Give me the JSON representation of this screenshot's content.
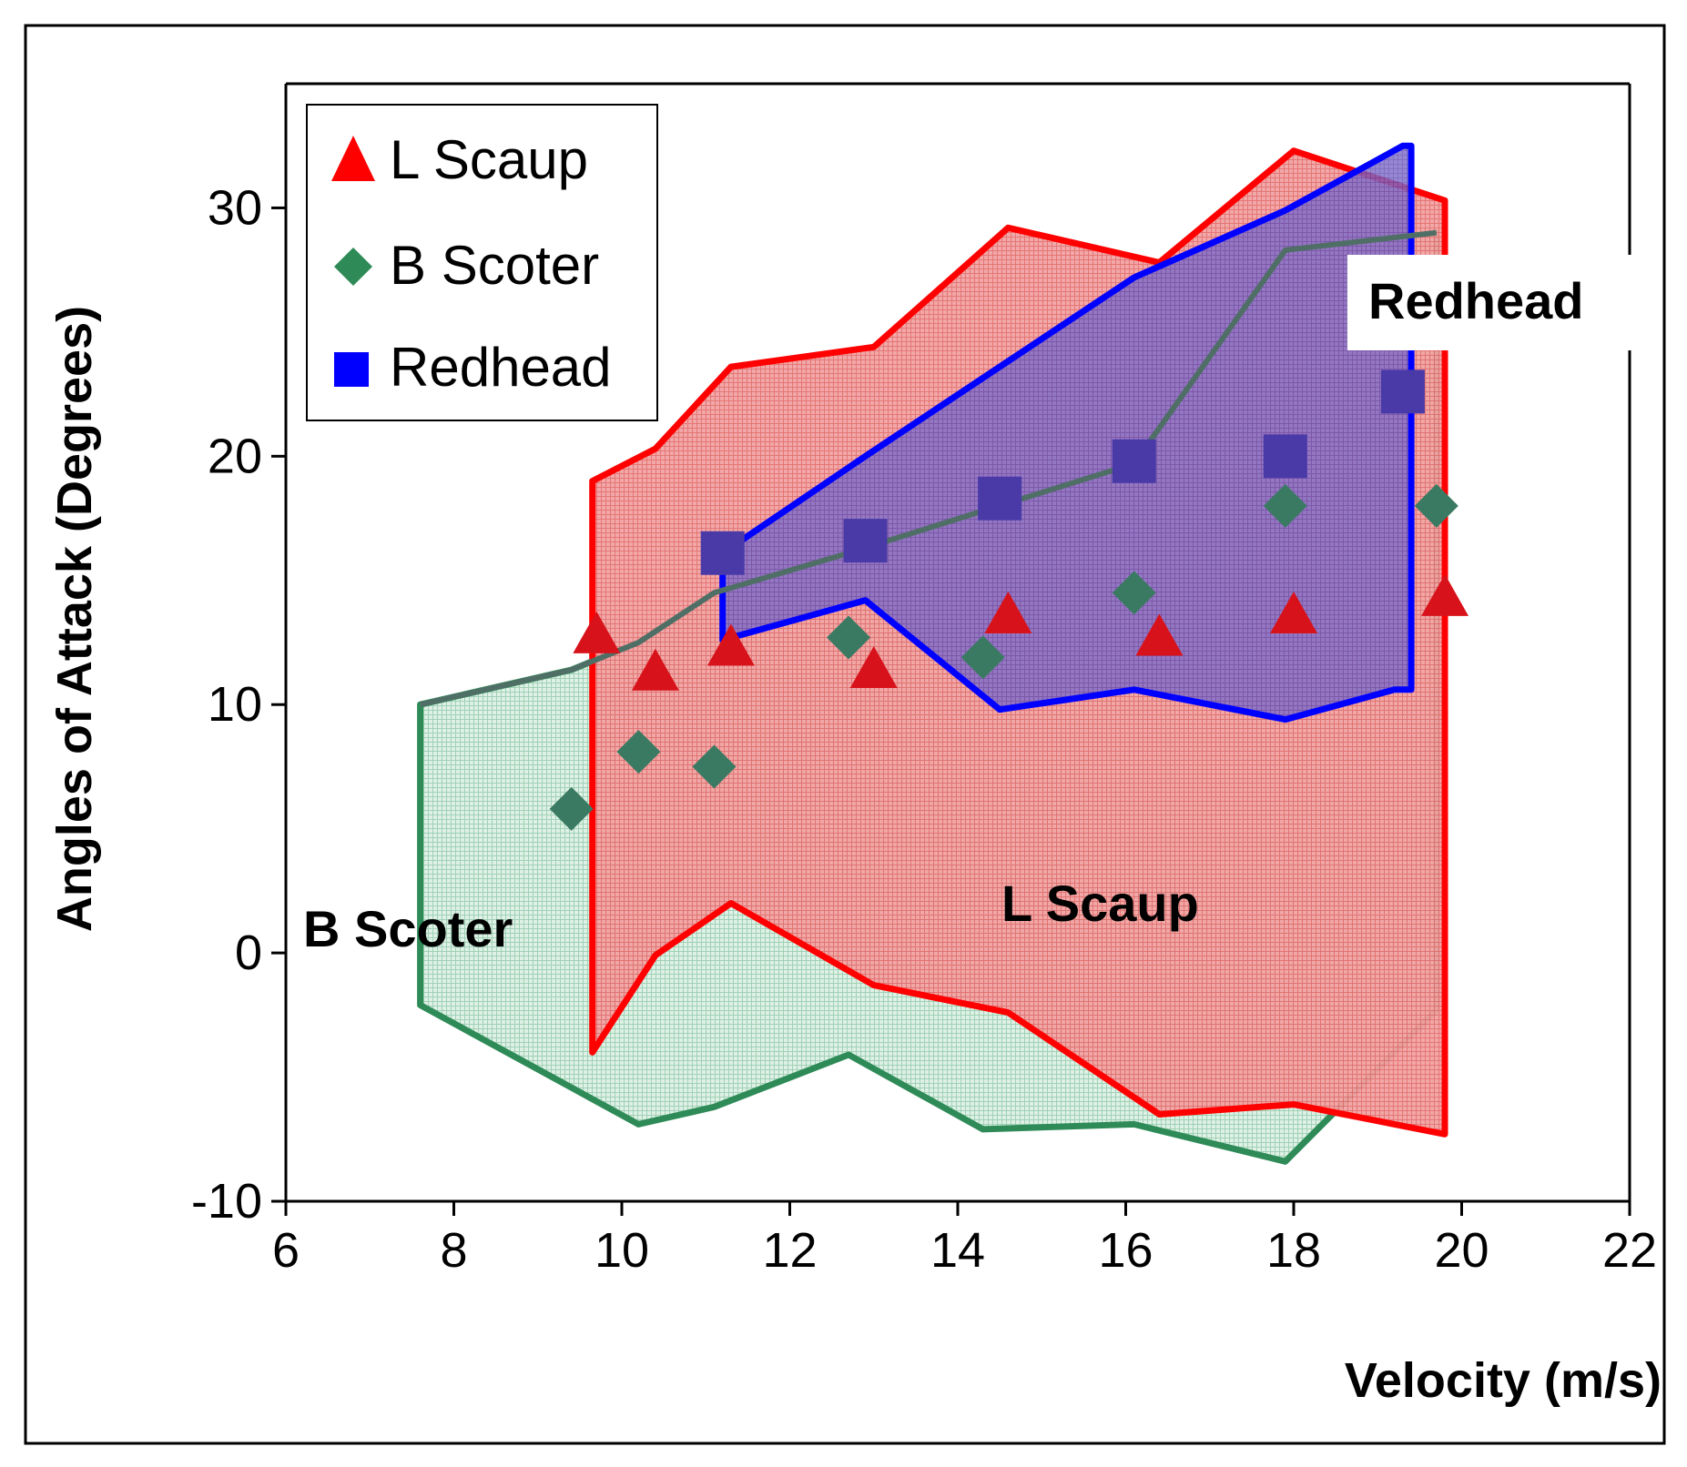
{
  "chart_data": {
    "type": "scatter",
    "xlabel": "Velocity (m/s)",
    "ylabel": "Angles of Attack (Degrees)",
    "xlim": [
      6,
      22
    ],
    "ylim": [
      -10,
      35
    ],
    "xticks": [
      6,
      8,
      10,
      12,
      14,
      16,
      18,
      20,
      22
    ],
    "yticks": [
      -10,
      0,
      10,
      20,
      30
    ],
    "legend_position": "top-left",
    "series": [
      {
        "name": "L Scaup",
        "marker": "triangle",
        "color": "#ff0000",
        "points": [
          [
            9.7,
            12.8
          ],
          [
            10.4,
            11.3
          ],
          [
            11.3,
            12.3
          ],
          [
            13.0,
            11.4
          ],
          [
            14.6,
            13.6
          ],
          [
            16.4,
            12.7
          ],
          [
            18.0,
            13.6
          ],
          [
            19.8,
            14.3
          ]
        ],
        "region": [
          [
            9.65,
            -4
          ],
          [
            9.65,
            19
          ],
          [
            10.4,
            20.3
          ],
          [
            11.3,
            23.6
          ],
          [
            13.0,
            24.4
          ],
          [
            14.6,
            29.2
          ],
          [
            16.4,
            27.8
          ],
          [
            18.0,
            32.3
          ],
          [
            19.8,
            30.3
          ],
          [
            19.8,
            -7.3
          ],
          [
            18.0,
            -6.1
          ],
          [
            16.4,
            -6.5
          ],
          [
            14.6,
            -2.4
          ],
          [
            13.0,
            -1.3
          ],
          [
            11.3,
            2.0
          ],
          [
            10.4,
            -0.1
          ],
          [
            9.65,
            -4
          ]
        ],
        "region_label": "L Scaup"
      },
      {
        "name": "B Scoter",
        "marker": "diamond",
        "color": "#2e8b57",
        "points": [
          [
            9.4,
            5.8
          ],
          [
            10.2,
            8.1
          ],
          [
            11.1,
            7.5
          ],
          [
            12.7,
            12.7
          ],
          [
            14.3,
            11.9
          ],
          [
            16.1,
            14.5
          ],
          [
            17.9,
            18.0
          ],
          [
            19.7,
            18.0
          ]
        ],
        "region": [
          [
            7.6,
            10.0
          ],
          [
            9.4,
            11.4
          ],
          [
            10.2,
            12.5
          ],
          [
            11.1,
            14.5
          ],
          [
            12.7,
            16.1
          ],
          [
            14.3,
            17.8
          ],
          [
            16.1,
            19.7
          ],
          [
            17.9,
            28.3
          ],
          [
            19.7,
            29.0
          ],
          [
            19.7,
            -2.3
          ],
          [
            17.9,
            -8.4
          ],
          [
            16.1,
            -6.9
          ],
          [
            14.3,
            -7.1
          ],
          [
            12.7,
            -4.1
          ],
          [
            11.1,
            -6.2
          ],
          [
            10.2,
            -6.9
          ],
          [
            7.6,
            -2.1
          ],
          [
            7.6,
            10.0
          ]
        ],
        "region_label": "B Scoter"
      },
      {
        "name": "Redhead",
        "marker": "square",
        "color": "#0000ff",
        "points": [
          [
            11.2,
            16.1
          ],
          [
            12.9,
            16.6
          ],
          [
            14.5,
            18.3
          ],
          [
            16.1,
            19.8
          ],
          [
            17.9,
            20.0
          ],
          [
            19.3,
            22.6
          ]
        ],
        "region": [
          [
            11.2,
            16.1
          ],
          [
            12.9,
            20.0
          ],
          [
            14.5,
            23.6
          ],
          [
            16.1,
            27.2
          ],
          [
            17.9,
            29.9
          ],
          [
            19.3,
            32.5
          ],
          [
            19.4,
            32.5
          ],
          [
            19.4,
            10.6
          ],
          [
            19.2,
            10.6
          ],
          [
            17.9,
            9.4
          ],
          [
            16.1,
            10.6
          ],
          [
            14.5,
            9.8
          ],
          [
            12.9,
            14.2
          ],
          [
            11.2,
            12.6
          ],
          [
            11.2,
            16.1
          ]
        ],
        "region_label": "Redhead"
      }
    ]
  }
}
